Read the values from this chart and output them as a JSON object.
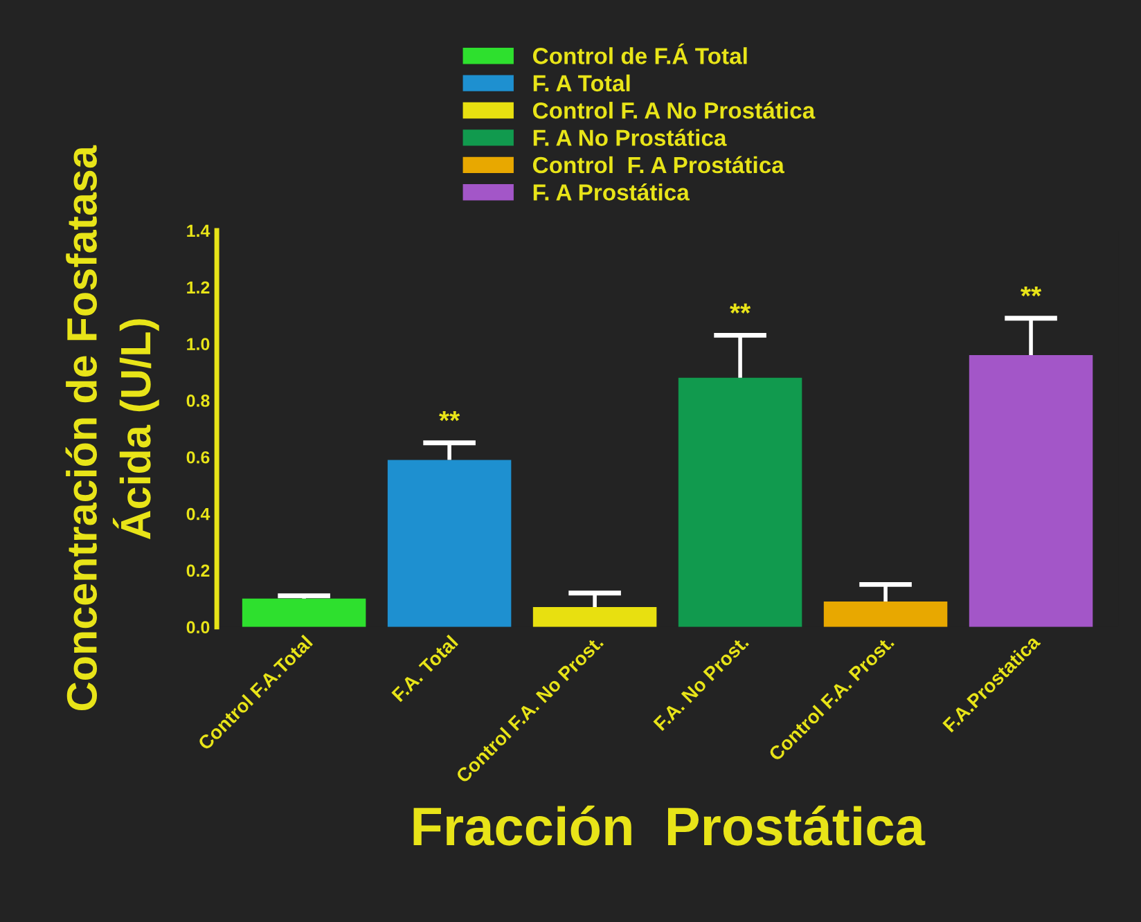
{
  "chart_data": {
    "type": "bar",
    "xlabel": "Fracción  Prostática",
    "ylabel": "Concentración de Fosfatasa\nÁcida (U/L)",
    "categories": [
      "Control F.A.Total",
      "F.A. Total",
      "Control F.A. No Prost.",
      "F.A. No Prost.",
      "Control F.A. Prost.",
      "F.A.Prostatica"
    ],
    "series": [
      {
        "name": "Control de F.Á Total",
        "color": "#2ee02e",
        "values": [
          0.1,
          null,
          null,
          null,
          null,
          null
        ],
        "errors": [
          [
            0.1,
            0.11
          ],
          null,
          null,
          null,
          null,
          null
        ]
      },
      {
        "name": "F. A Total",
        "color": "#1e90d0",
        "values": [
          null,
          0.59,
          null,
          null,
          null,
          null
        ],
        "errors": [
          null,
          [
            0.59,
            0.65
          ],
          null,
          null,
          null,
          null
        ]
      },
      {
        "name": "Control F. A No Prostática",
        "color": "#e8e010",
        "values": [
          null,
          null,
          0.07,
          null,
          null,
          null
        ],
        "errors": [
          null,
          null,
          [
            0.07,
            0.12
          ],
          null,
          null,
          null
        ]
      },
      {
        "name": "F. A No Prostática",
        "color": "#119a4e",
        "values": [
          null,
          null,
          null,
          0.88,
          null,
          null
        ],
        "errors": [
          null,
          null,
          null,
          [
            0.88,
            1.03
          ],
          null,
          null
        ]
      },
      {
        "name": "Control  F. A Prostática",
        "color": "#e8a800",
        "values": [
          null,
          null,
          null,
          null,
          0.09,
          null
        ],
        "errors": [
          null,
          null,
          null,
          null,
          [
            0.09,
            0.15
          ],
          null
        ]
      },
      {
        "name": "F. A Prostática",
        "color": "#a356c8",
        "values": [
          null,
          null,
          null,
          null,
          null,
          0.96
        ],
        "errors": [
          null,
          null,
          null,
          null,
          null,
          [
            0.96,
            1.09
          ]
        ]
      }
    ],
    "ylim": [
      0,
      1.4
    ],
    "yticks": [
      {
        "value": 0,
        "label": "0.0"
      },
      0.2,
      0.4,
      0.6,
      0.8,
      {
        "value": 1,
        "label": "1.0"
      },
      1.2,
      1.4
    ],
    "annotations": [
      "**",
      "**",
      "**"
    ],
    "legend": "top",
    "grid": false
  }
}
